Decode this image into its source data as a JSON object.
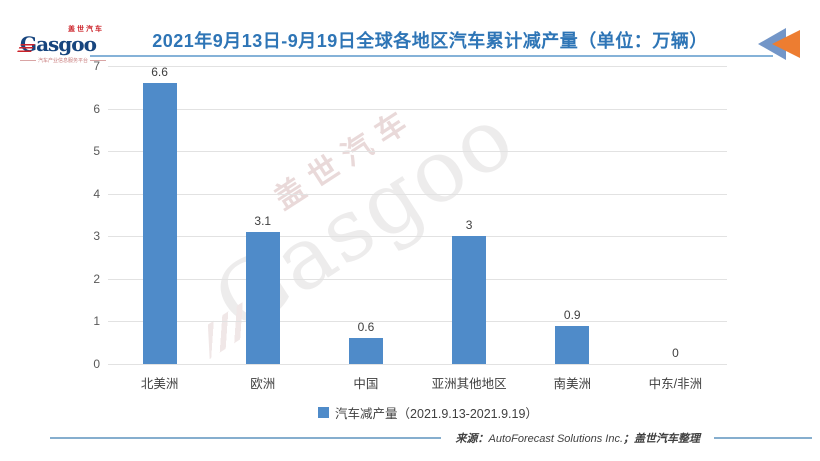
{
  "logo": {
    "brand_cn": "盖世汽车",
    "brand_en": "Gasgoo",
    "tagline": "汽车产业信息服务平台"
  },
  "header": {
    "title": "2021年9月13日-9月19日全球各地区汽车累计减产量（单位：万辆）"
  },
  "chart_data": {
    "type": "bar",
    "title": "2021年9月13日-9月19日全球各地区汽车累计减产量（单位：万辆）",
    "unit_label": "万辆",
    "categories": [
      "北美洲",
      "欧洲",
      "中国",
      "亚洲其他地区",
      "南美洲",
      "中东/非洲"
    ],
    "values": [
      6.6,
      3.1,
      0.6,
      3,
      0.9,
      0
    ],
    "data_labels": [
      "6.6",
      "3.1",
      "0.6",
      "3",
      "0.9",
      "0"
    ],
    "ylim": [
      0,
      7
    ],
    "ytick_step": 1,
    "grid": true,
    "bar_color": "#4F8BC9",
    "legend": {
      "label": "汽车减产量（2021.9.13-2021.9.19）",
      "position": "bottom"
    }
  },
  "watermark": {
    "cn": "盖世汽车",
    "en": "Gasgoo"
  },
  "footer": {
    "source_label": "来源：",
    "source_org": "AutoForecast Solutions Inc.",
    "source_rest": "；盖世汽车整理"
  },
  "colors": {
    "title_blue": "#2E75B6",
    "underline_blue": "#85B2D8",
    "bar_blue": "#4F8BC9",
    "arrow_blue": "#7396C8",
    "arrow_orange": "#ED7D31"
  }
}
